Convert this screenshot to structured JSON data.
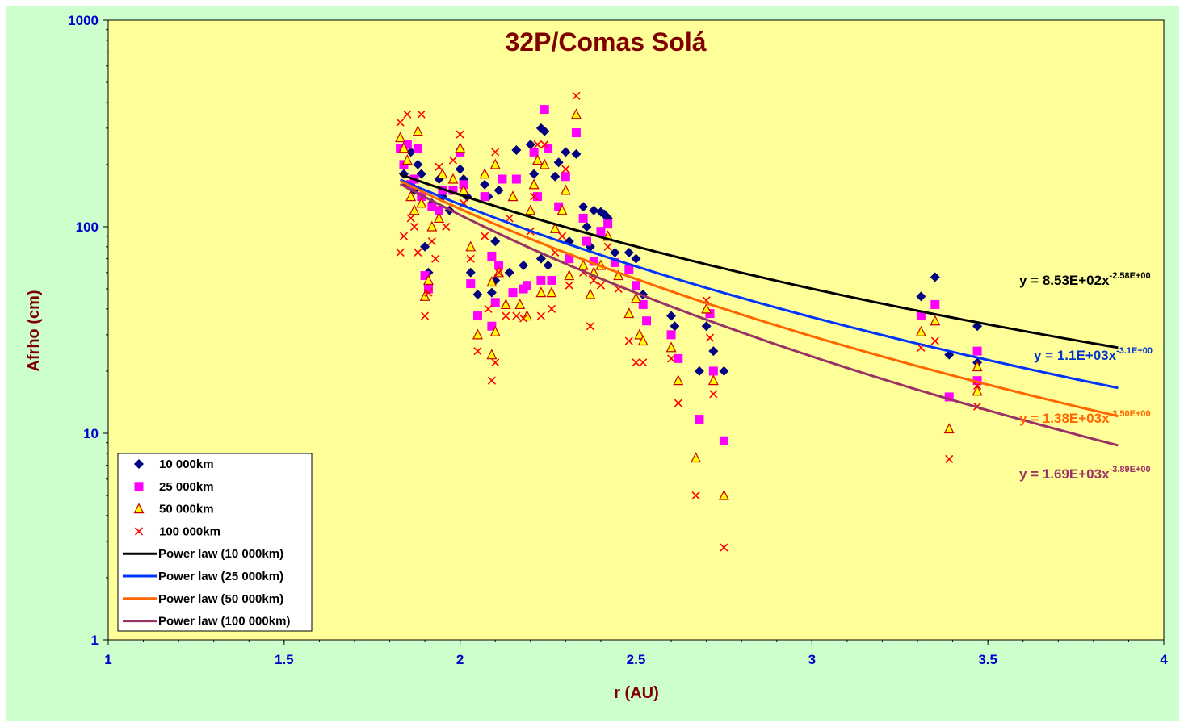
{
  "chart_data": {
    "type": "scatter",
    "title": "32P/Comas Solá",
    "xlabel": "r (AU)",
    "ylabel": "Afrho (cm)",
    "xlim": [
      1,
      4
    ],
    "ylim": [
      1,
      1000
    ],
    "y_scale": "log",
    "x_ticks": [
      "1",
      "1.5",
      "2",
      "2.5",
      "3",
      "3.5",
      "4"
    ],
    "y_ticks": [
      "1",
      "10",
      "100",
      "1000"
    ],
    "legend_position": "bottom-left",
    "colors": {
      "plot_background": "#ffff99",
      "chart_background": "#ccffcc",
      "series_10000": "#000080",
      "series_25000": "#ff00ff",
      "series_50000_fill": "#ffff00",
      "series_50000_edge": "#cc0000",
      "series_100000": "#ff0000",
      "fit_10000": "#000000",
      "fit_25000": "#0033ff",
      "fit_50000": "#ff6600",
      "fit_100000": "#993366"
    },
    "series": [
      {
        "name": "10 000km",
        "marker": "diamond",
        "points": [
          [
            1.84,
            180
          ],
          [
            1.85,
            160
          ],
          [
            1.86,
            230
          ],
          [
            1.87,
            150
          ],
          [
            1.88,
            200
          ],
          [
            1.89,
            180
          ],
          [
            1.9,
            80
          ],
          [
            1.91,
            60
          ],
          [
            1.92,
            130
          ],
          [
            1.94,
            170
          ],
          [
            1.95,
            140
          ],
          [
            1.97,
            120
          ],
          [
            2.0,
            190
          ],
          [
            2.01,
            170
          ],
          [
            2.02,
            140
          ],
          [
            2.03,
            60
          ],
          [
            2.05,
            47
          ],
          [
            2.07,
            160
          ],
          [
            2.08,
            140
          ],
          [
            2.1,
            85
          ],
          [
            2.1,
            55
          ],
          [
            2.09,
            48
          ],
          [
            2.11,
            150
          ],
          [
            2.14,
            60
          ],
          [
            2.16,
            235
          ],
          [
            2.18,
            65
          ],
          [
            2.2,
            250
          ],
          [
            2.21,
            180
          ],
          [
            2.23,
            300
          ],
          [
            2.23,
            70
          ],
          [
            2.24,
            290
          ],
          [
            2.25,
            65
          ],
          [
            2.27,
            175
          ],
          [
            2.28,
            205
          ],
          [
            2.3,
            230
          ],
          [
            2.31,
            85
          ],
          [
            2.33,
            225
          ],
          [
            2.35,
            125
          ],
          [
            2.36,
            100
          ],
          [
            2.37,
            80
          ],
          [
            2.38,
            120
          ],
          [
            2.4,
            118
          ],
          [
            2.41,
            115
          ],
          [
            2.42,
            110
          ],
          [
            2.44,
            75
          ],
          [
            2.48,
            75
          ],
          [
            2.5,
            70
          ],
          [
            2.52,
            47
          ],
          [
            2.6,
            37
          ],
          [
            2.61,
            33
          ],
          [
            2.68,
            20
          ],
          [
            2.7,
            33
          ],
          [
            2.72,
            25
          ],
          [
            2.75,
            20
          ],
          [
            3.31,
            46
          ],
          [
            3.35,
            57
          ],
          [
            3.39,
            24
          ],
          [
            3.47,
            33
          ],
          [
            3.47,
            22
          ]
        ]
      },
      {
        "name": "25 000km",
        "marker": "square",
        "points": [
          [
            1.83,
            240
          ],
          [
            1.84,
            200
          ],
          [
            1.85,
            250
          ],
          [
            1.86,
            160
          ],
          [
            1.87,
            170
          ],
          [
            1.88,
            240
          ],
          [
            1.89,
            140
          ],
          [
            1.9,
            58
          ],
          [
            1.91,
            50
          ],
          [
            1.92,
            125
          ],
          [
            1.94,
            120
          ],
          [
            1.95,
            150
          ],
          [
            1.98,
            150
          ],
          [
            2.0,
            230
          ],
          [
            2.01,
            160
          ],
          [
            2.03,
            53
          ],
          [
            2.05,
            37
          ],
          [
            2.07,
            140
          ],
          [
            2.09,
            72
          ],
          [
            2.09,
            33
          ],
          [
            2.1,
            43
          ],
          [
            2.11,
            65
          ],
          [
            2.12,
            170
          ],
          [
            2.15,
            48
          ],
          [
            2.16,
            170
          ],
          [
            2.18,
            50
          ],
          [
            2.19,
            52
          ],
          [
            2.21,
            230
          ],
          [
            2.22,
            140
          ],
          [
            2.23,
            55
          ],
          [
            2.24,
            370
          ],
          [
            2.25,
            240
          ],
          [
            2.26,
            55
          ],
          [
            2.28,
            125
          ],
          [
            2.3,
            175
          ],
          [
            2.31,
            70
          ],
          [
            2.33,
            285
          ],
          [
            2.35,
            110
          ],
          [
            2.36,
            85
          ],
          [
            2.38,
            68
          ],
          [
            2.4,
            95
          ],
          [
            2.42,
            103
          ],
          [
            2.44,
            67
          ],
          [
            2.48,
            62
          ],
          [
            2.5,
            52
          ],
          [
            2.52,
            42
          ],
          [
            2.53,
            35
          ],
          [
            2.6,
            30
          ],
          [
            2.62,
            23
          ],
          [
            2.68,
            11.7
          ],
          [
            2.71,
            38
          ],
          [
            2.72,
            20
          ],
          [
            2.75,
            9.2
          ],
          [
            3.31,
            37
          ],
          [
            3.35,
            42
          ],
          [
            3.39,
            15
          ],
          [
            3.47,
            25
          ],
          [
            3.47,
            18
          ]
        ]
      },
      {
        "name": "50 000km",
        "marker": "triangle",
        "points": [
          [
            1.83,
            270
          ],
          [
            1.84,
            240
          ],
          [
            1.85,
            210
          ],
          [
            1.86,
            140
          ],
          [
            1.87,
            120
          ],
          [
            1.88,
            290
          ],
          [
            1.89,
            130
          ],
          [
            1.9,
            46
          ],
          [
            1.91,
            55
          ],
          [
            1.92,
            100
          ],
          [
            1.94,
            110
          ],
          [
            1.95,
            180
          ],
          [
            1.98,
            170
          ],
          [
            2.0,
            240
          ],
          [
            2.01,
            150
          ],
          [
            2.03,
            80
          ],
          [
            2.05,
            30
          ],
          [
            2.07,
            180
          ],
          [
            2.09,
            54
          ],
          [
            2.09,
            24
          ],
          [
            2.1,
            200
          ],
          [
            2.1,
            31
          ],
          [
            2.11,
            60
          ],
          [
            2.13,
            42
          ],
          [
            2.15,
            140
          ],
          [
            2.17,
            42
          ],
          [
            2.19,
            37
          ],
          [
            2.2,
            120
          ],
          [
            2.21,
            160
          ],
          [
            2.22,
            210
          ],
          [
            2.23,
            48
          ],
          [
            2.24,
            200
          ],
          [
            2.26,
            48
          ],
          [
            2.27,
            98
          ],
          [
            2.29,
            120
          ],
          [
            2.3,
            150
          ],
          [
            2.31,
            58
          ],
          [
            2.33,
            350
          ],
          [
            2.35,
            65
          ],
          [
            2.37,
            47
          ],
          [
            2.38,
            60
          ],
          [
            2.4,
            65
          ],
          [
            2.42,
            90
          ],
          [
            2.45,
            58
          ],
          [
            2.48,
            38
          ],
          [
            2.5,
            45
          ],
          [
            2.51,
            30
          ],
          [
            2.52,
            28
          ],
          [
            2.6,
            26
          ],
          [
            2.62,
            18
          ],
          [
            2.67,
            7.6
          ],
          [
            2.7,
            40
          ],
          [
            2.72,
            18
          ],
          [
            2.75,
            5
          ],
          [
            3.31,
            31
          ],
          [
            3.35,
            35
          ],
          [
            3.39,
            10.5
          ],
          [
            3.47,
            21
          ],
          [
            3.47,
            16
          ]
        ]
      },
      {
        "name": "100 000km",
        "marker": "x",
        "points": [
          [
            1.83,
            320
          ],
          [
            1.83,
            75
          ],
          [
            1.84,
            90
          ],
          [
            1.85,
            350
          ],
          [
            1.86,
            110
          ],
          [
            1.87,
            100
          ],
          [
            1.88,
            75
          ],
          [
            1.89,
            350
          ],
          [
            1.9,
            37
          ],
          [
            1.91,
            48
          ],
          [
            1.92,
            85
          ],
          [
            1.93,
            70
          ],
          [
            1.94,
            195
          ],
          [
            1.96,
            100
          ],
          [
            1.98,
            210
          ],
          [
            2.0,
            280
          ],
          [
            2.01,
            130
          ],
          [
            2.03,
            70
          ],
          [
            2.05,
            25
          ],
          [
            2.07,
            90
          ],
          [
            2.08,
            40
          ],
          [
            2.09,
            18
          ],
          [
            2.1,
            230
          ],
          [
            2.1,
            22
          ],
          [
            2.11,
            60
          ],
          [
            2.13,
            37
          ],
          [
            2.14,
            110
          ],
          [
            2.16,
            37
          ],
          [
            2.18,
            36
          ],
          [
            2.2,
            95
          ],
          [
            2.21,
            140
          ],
          [
            2.22,
            250
          ],
          [
            2.23,
            37
          ],
          [
            2.24,
            250
          ],
          [
            2.26,
            40
          ],
          [
            2.27,
            75
          ],
          [
            2.29,
            90
          ],
          [
            2.3,
            190
          ],
          [
            2.31,
            52
          ],
          [
            2.33,
            430
          ],
          [
            2.35,
            60
          ],
          [
            2.37,
            33
          ],
          [
            2.38,
            55
          ],
          [
            2.4,
            52
          ],
          [
            2.42,
            80
          ],
          [
            2.45,
            50
          ],
          [
            2.48,
            28
          ],
          [
            2.5,
            22
          ],
          [
            2.52,
            22
          ],
          [
            2.6,
            23
          ],
          [
            2.62,
            14
          ],
          [
            2.67,
            5
          ],
          [
            2.7,
            44
          ],
          [
            2.71,
            29
          ],
          [
            2.72,
            15.5
          ],
          [
            2.75,
            2.8
          ],
          [
            3.31,
            26
          ],
          [
            3.35,
            28
          ],
          [
            3.39,
            7.5
          ],
          [
            3.47,
            17
          ],
          [
            3.47,
            13.5
          ]
        ]
      }
    ],
    "fits": [
      {
        "name": "Power law (10 000km)",
        "a": 853,
        "b": -2.58,
        "x_range": [
          1.83,
          3.87
        ],
        "eq_text": "y = 8.53E+02x",
        "eq_exp": "-2.58E+00"
      },
      {
        "name": "Power law (25 000km)",
        "a": 1100,
        "b": -3.1,
        "x_range": [
          1.83,
          3.87
        ],
        "eq_text": "y = 1.1E+03x",
        "eq_exp": "-3.1E+00"
      },
      {
        "name": "Power law (50 000km)",
        "a": 1380,
        "b": -3.5,
        "x_range": [
          1.83,
          3.87
        ],
        "eq_text": "y = 1.38E+03x",
        "eq_exp": "-3.50E+00"
      },
      {
        "name": "Power law (100 000km)",
        "a": 1690,
        "b": -3.89,
        "x_range": [
          1.83,
          3.87
        ],
        "eq_text": "y = 1.69E+03x",
        "eq_exp": "-3.89E+00"
      }
    ]
  }
}
